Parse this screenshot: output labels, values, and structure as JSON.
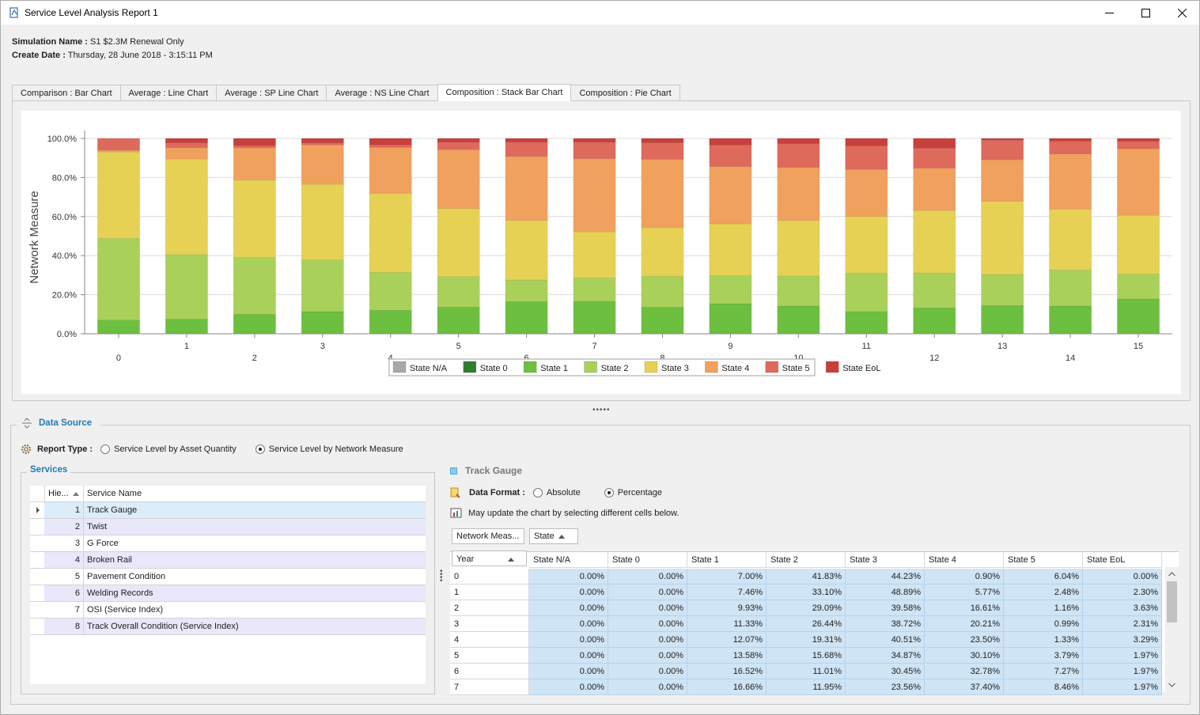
{
  "window": {
    "title": "Service Level Analysis Report 1",
    "controls": [
      "minimize",
      "maximize",
      "close"
    ]
  },
  "info": {
    "simulation_label": "Simulation Name :",
    "simulation_value": "S1 $2.3M Renewal Only",
    "create_label": "Create Date :",
    "create_value": "Thursday, 28 June 2018 - 3:15:11 PM"
  },
  "tabs": [
    {
      "label": "Comparison : Bar Chart",
      "active": false
    },
    {
      "label": "Average : Line Chart",
      "active": false
    },
    {
      "label": "Average : SP Line Chart",
      "active": false
    },
    {
      "label": "Average : NS Line Chart",
      "active": false
    },
    {
      "label": "Composition : Stack Bar Chart",
      "active": true
    },
    {
      "label": "Composition : Pie Chart",
      "active": false
    }
  ],
  "chart_data": {
    "type": "bar",
    "stacked": true,
    "ylabel": "Network Measure",
    "xlabel": "",
    "ylim": [
      0,
      100
    ],
    "y_ticks": [
      "0.0%",
      "20.0%",
      "40.0%",
      "60.0%",
      "80.0%",
      "100.0%"
    ],
    "categories": [
      "0",
      "1",
      "2",
      "3",
      "4",
      "5",
      "6",
      "7",
      "8",
      "9",
      "10",
      "11",
      "12",
      "13",
      "14",
      "15"
    ],
    "legend_position": "bottom-center",
    "series": [
      {
        "name": "State N/A",
        "color": "#a8a8a8",
        "values": [
          0,
          0,
          0,
          0,
          0,
          0,
          0,
          0,
          0,
          0,
          0,
          0,
          0,
          0,
          0,
          0
        ]
      },
      {
        "name": "State 0",
        "color": "#2e7d32",
        "values": [
          0,
          0,
          0,
          0,
          0,
          0,
          0,
          0,
          0,
          0,
          0,
          0,
          0,
          0,
          0,
          0
        ]
      },
      {
        "name": "State 1",
        "color": "#6cbf3f",
        "values": [
          7.0,
          7.46,
          9.93,
          11.33,
          12.07,
          13.58,
          16.52,
          16.66,
          13.6,
          15.4,
          14.2,
          11.4,
          13.3,
          14.5,
          14.2,
          17.8
        ]
      },
      {
        "name": "State 2",
        "color": "#a9d15a",
        "values": [
          41.83,
          33.1,
          29.09,
          26.44,
          19.31,
          15.68,
          11.01,
          11.95,
          15.8,
          14.4,
          15.4,
          19.6,
          17.8,
          15.9,
          18.5,
          12.7
        ]
      },
      {
        "name": "State 3",
        "color": "#e6d154",
        "values": [
          44.23,
          48.89,
          39.58,
          38.72,
          40.51,
          34.87,
          30.45,
          23.56,
          24.9,
          26.5,
          28.4,
          29.1,
          32.0,
          37.4,
          31.1,
          30.1
        ]
      },
      {
        "name": "State 4",
        "color": "#f0a15e",
        "values": [
          0.9,
          5.77,
          16.61,
          20.21,
          23.5,
          30.1,
          32.78,
          37.4,
          35.0,
          29.3,
          27.2,
          24.0,
          21.7,
          21.3,
          28.2,
          34.1
        ]
      },
      {
        "name": "State 5",
        "color": "#de6a5c",
        "values": [
          6.04,
          2.48,
          1.16,
          0.99,
          1.33,
          3.79,
          7.27,
          8.46,
          8.5,
          11.0,
          12.1,
          12.1,
          10.2,
          10.0,
          6.6,
          3.8
        ]
      },
      {
        "name": "State EoL",
        "color": "#c8403c",
        "values": [
          0.0,
          2.3,
          3.63,
          2.31,
          3.29,
          1.97,
          1.97,
          1.97,
          2.2,
          3.4,
          2.7,
          3.8,
          5.0,
          0.9,
          1.4,
          1.5
        ]
      }
    ]
  },
  "data_source": {
    "title": "Data Source",
    "report_type_label": "Report Type :",
    "options": [
      {
        "label": "Service Level by Asset Quantity",
        "checked": false
      },
      {
        "label": "Service Level by Network Measure",
        "checked": true
      }
    ]
  },
  "services": {
    "title": "Services",
    "columns": [
      "Hie...",
      "Service Name"
    ],
    "rows": [
      {
        "num": "1",
        "name": "Track Gauge"
      },
      {
        "num": "2",
        "name": "Twist"
      },
      {
        "num": "3",
        "name": "G Force"
      },
      {
        "num": "4",
        "name": "Broken Rail"
      },
      {
        "num": "5",
        "name": "Pavement Condition"
      },
      {
        "num": "6",
        "name": "Welding Records"
      },
      {
        "num": "7",
        "name": "OSI (Service Index)"
      },
      {
        "num": "8",
        "name": "Track Overall Condition (Service Index)"
      }
    ]
  },
  "track": {
    "title": "Track Gauge",
    "data_format_label": "Data Format :",
    "formats": [
      {
        "label": "Absolute",
        "checked": false
      },
      {
        "label": "Percentage",
        "checked": true
      }
    ],
    "hint": "May update the chart by selecting different cells below.",
    "field_measure": "Network Meas...",
    "field_state": "State",
    "field_year": "Year",
    "columns": [
      "State N/A",
      "State 0",
      "State 1",
      "State 2",
      "State 3",
      "State 4",
      "State 5",
      "State EoL"
    ],
    "rows": [
      {
        "year": "0",
        "values": [
          "0.00%",
          "0.00%",
          "7.00%",
          "41.83%",
          "44.23%",
          "0.90%",
          "6.04%",
          "0.00%"
        ]
      },
      {
        "year": "1",
        "values": [
          "0.00%",
          "0.00%",
          "7.46%",
          "33.10%",
          "48.89%",
          "5.77%",
          "2.48%",
          "2.30%"
        ]
      },
      {
        "year": "2",
        "values": [
          "0.00%",
          "0.00%",
          "9.93%",
          "29.09%",
          "39.58%",
          "16.61%",
          "1.16%",
          "3.63%"
        ]
      },
      {
        "year": "3",
        "values": [
          "0.00%",
          "0.00%",
          "11.33%",
          "26.44%",
          "38.72%",
          "20.21%",
          "0.99%",
          "2.31%"
        ]
      },
      {
        "year": "4",
        "values": [
          "0.00%",
          "0.00%",
          "12.07%",
          "19.31%",
          "40.51%",
          "23.50%",
          "1.33%",
          "3.29%"
        ]
      },
      {
        "year": "5",
        "values": [
          "0.00%",
          "0.00%",
          "13.58%",
          "15.68%",
          "34.87%",
          "30.10%",
          "3.79%",
          "1.97%"
        ]
      },
      {
        "year": "6",
        "values": [
          "0.00%",
          "0.00%",
          "16.52%",
          "11.01%",
          "30.45%",
          "32.78%",
          "7.27%",
          "1.97%"
        ]
      },
      {
        "year": "7",
        "values": [
          "0.00%",
          "0.00%",
          "16.66%",
          "11.95%",
          "23.56%",
          "37.40%",
          "8.46%",
          "1.97%"
        ]
      }
    ]
  },
  "colors": {
    "accent": "#1f7bb6",
    "selected_cell": "#cfe4f5",
    "alt_row": "#e8e8fa"
  }
}
